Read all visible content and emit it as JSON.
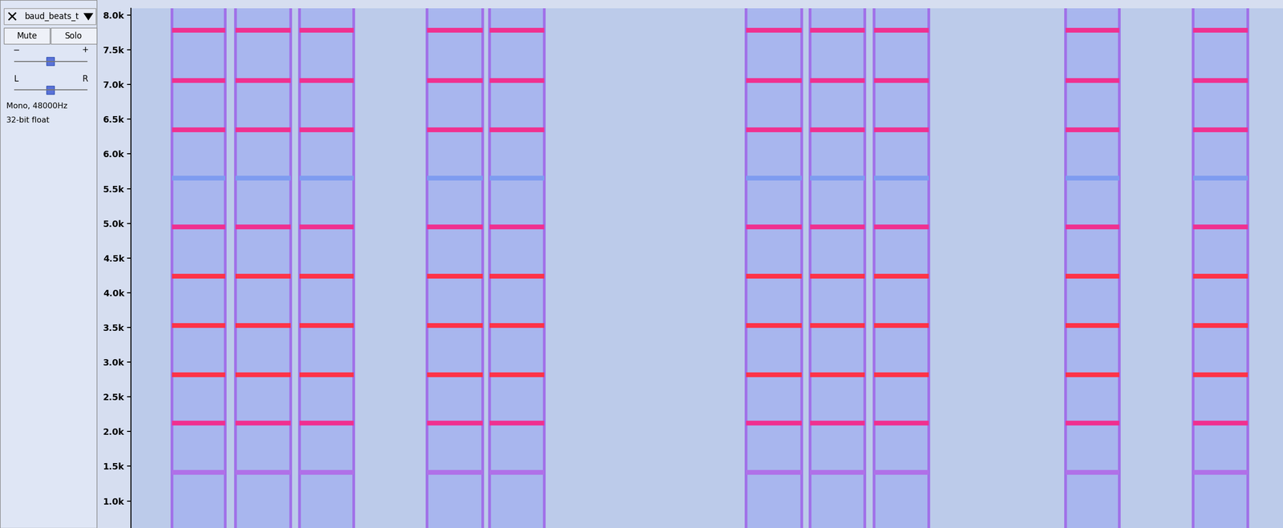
{
  "track_panel": {
    "name": "baud_beats_t",
    "buttons": [
      "Mute",
      "Solo"
    ],
    "gain_slider": [
      "−",
      "+"
    ],
    "pan_slider": [
      "L",
      "R"
    ],
    "info": [
      "Mono, 48000Hz",
      "32-bit float"
    ]
  },
  "chart_data": {
    "type": "spectrogram",
    "tick_labels": "y",
    "xlim": [
      0,
      100
    ],
    "ylim": [
      610,
      8100
    ],
    "yticks": [
      {
        "value": 1000,
        "label": "1.0k"
      },
      {
        "value": 1500,
        "label": "1.5k"
      },
      {
        "value": 2000,
        "label": "2.0k"
      },
      {
        "value": 2500,
        "label": "2.5k"
      },
      {
        "value": 3000,
        "label": "3.0k"
      },
      {
        "value": 3500,
        "label": "3.5k"
      },
      {
        "value": 4000,
        "label": "4.0k"
      },
      {
        "value": 4500,
        "label": "4.5k"
      },
      {
        "value": 5000,
        "label": "5.0k"
      },
      {
        "value": 5500,
        "label": "5.5k"
      },
      {
        "value": 6000,
        "label": "6.0k"
      },
      {
        "value": 6500,
        "label": "6.5k"
      },
      {
        "value": 7000,
        "label": "7.0k"
      },
      {
        "value": 7500,
        "label": "7.5k"
      },
      {
        "value": 8000,
        "label": "8.0k"
      }
    ],
    "tones": [
      {
        "frequency": 1410,
        "color": "#b070e8"
      },
      {
        "frequency": 2120,
        "color": "#f03090"
      },
      {
        "frequency": 2820,
        "color": "#ff3348"
      },
      {
        "frequency": 3530,
        "color": "#ff3348"
      },
      {
        "frequency": 4240,
        "color": "#ff3348"
      },
      {
        "frequency": 4950,
        "color": "#f03090"
      },
      {
        "frequency": 5650,
        "color": "#7f9cf0"
      },
      {
        "frequency": 6350,
        "color": "#f03090"
      },
      {
        "frequency": 7060,
        "color": "#f03090"
      },
      {
        "frequency": 7780,
        "color": "#f03090"
      }
    ],
    "bursts": [
      [
        3.55,
        8.17
      ],
      [
        9.09,
        13.85
      ],
      [
        14.63,
        19.32
      ],
      [
        25.71,
        30.54
      ],
      [
        31.11,
        35.87
      ],
      [
        53.41,
        58.24
      ],
      [
        58.95,
        63.71
      ],
      [
        64.49,
        69.25
      ],
      [
        81.11,
        85.8
      ],
      [
        92.19,
        96.95
      ]
    ]
  }
}
